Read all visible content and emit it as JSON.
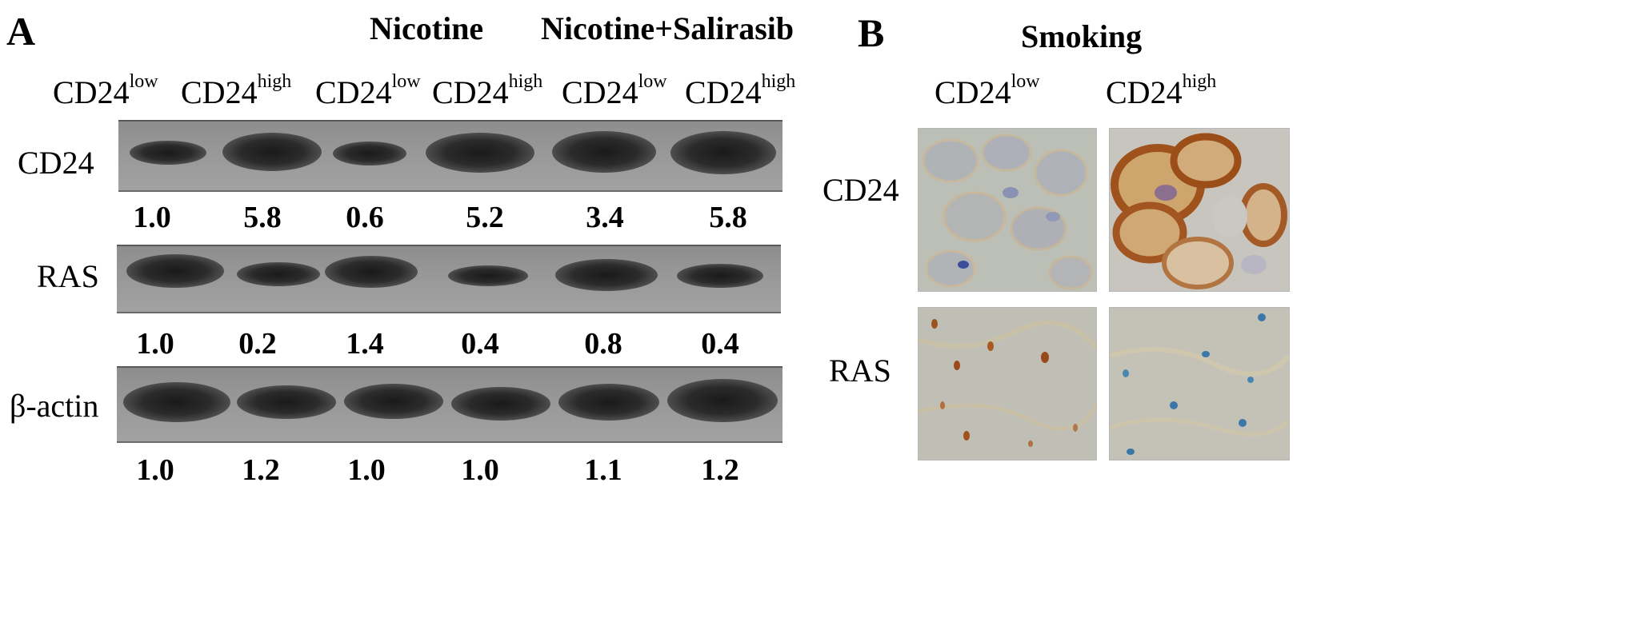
{
  "panel_a": {
    "letter": "A",
    "groups": {
      "nicotine": "Nicotine",
      "nicotine_salirasib": "Nicotine+Salirasib"
    },
    "lanes": [
      {
        "base": "CD24",
        "sup": "low"
      },
      {
        "base": "CD24",
        "sup": "high"
      },
      {
        "base": "CD24",
        "sup": "low"
      },
      {
        "base": "CD24",
        "sup": "high"
      },
      {
        "base": "CD24",
        "sup": "low"
      },
      {
        "base": "CD24",
        "sup": "high"
      }
    ],
    "rows": [
      {
        "label": "CD24",
        "values": [
          "1.0",
          "5.8",
          "0.6",
          "5.2",
          "3.4",
          "5.8"
        ]
      },
      {
        "label": "RAS",
        "values": [
          "1.0",
          "0.2",
          "1.4",
          "0.4",
          "0.8",
          "0.4"
        ]
      },
      {
        "label": "β-actin",
        "values": [
          "1.0",
          "1.2",
          "1.0",
          "1.0",
          "1.1",
          "1.2"
        ]
      }
    ]
  },
  "panel_b": {
    "letter": "B",
    "title": "Smoking",
    "columns": [
      {
        "base": "CD24",
        "sup": "low"
      },
      {
        "base": "CD24",
        "sup": "high"
      }
    ],
    "rows": [
      {
        "label": "CD24"
      },
      {
        "label": "RAS"
      }
    ]
  },
  "colors": {
    "blot_background": "#979797",
    "band": "#222222",
    "ihc_background": "#b9bcb3",
    "dab_brown": "#a0521c",
    "hematoxylin_blue": "#3a78a8"
  }
}
